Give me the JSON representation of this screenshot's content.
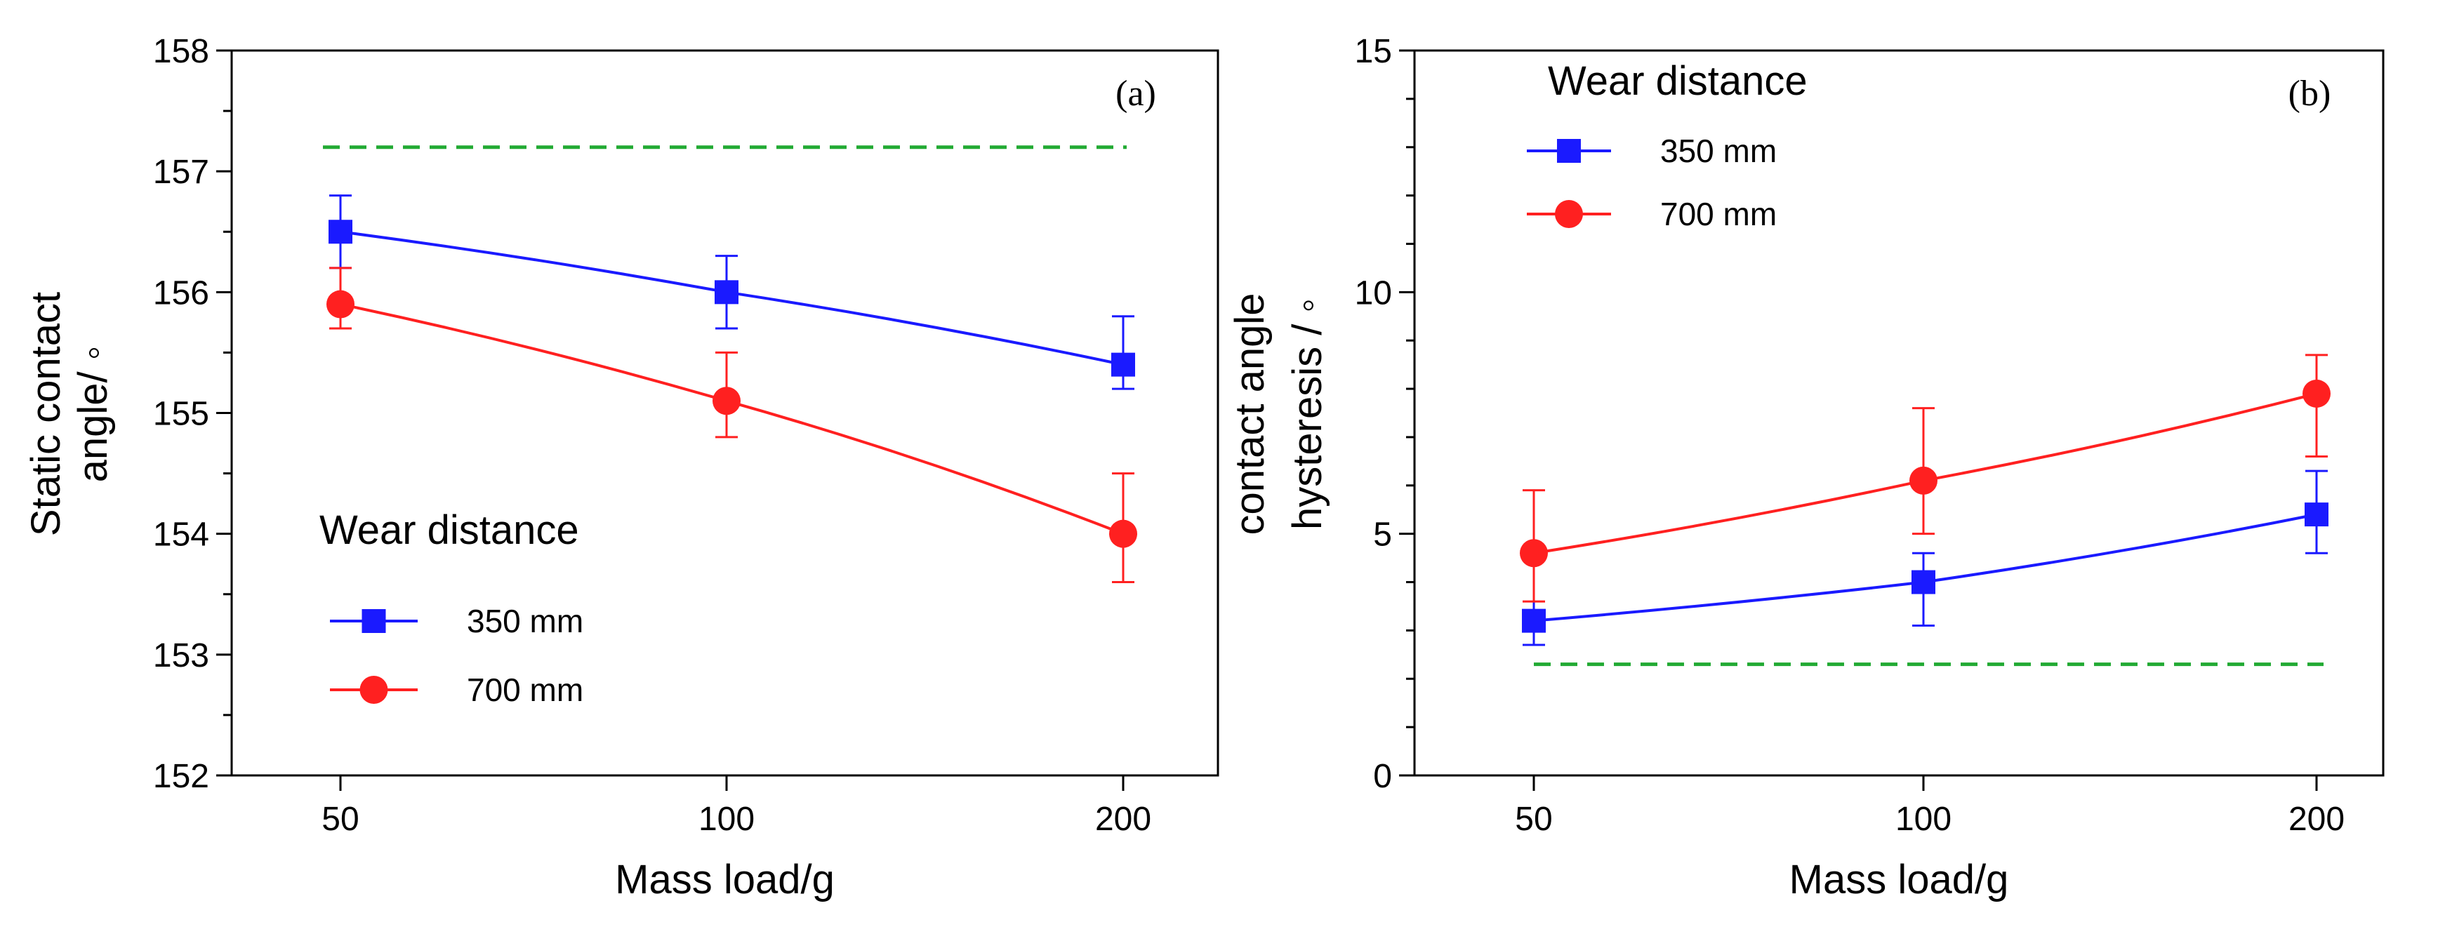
{
  "chart_data": [
    {
      "type": "line",
      "panel_label": "(a)",
      "xlabel": "Mass load/g",
      "ylabel_lines": [
        "Static contact",
        "angle/ ◦"
      ],
      "categories": [
        "50",
        "100",
        "200"
      ],
      "ylim": [
        152,
        158
      ],
      "yticks": [
        "152",
        "153",
        "154",
        "155",
        "156",
        "157",
        "158"
      ],
      "reference_line": {
        "value": 157.2,
        "color": "#22aa33",
        "style": "dashed"
      },
      "legend": {
        "title": "Wear distance",
        "placement": "lower-left"
      },
      "series": [
        {
          "name": "350 mm",
          "marker": "square",
          "color": "#1a1aff",
          "values": [
            156.5,
            156.0,
            155.4
          ],
          "err_high": [
            156.8,
            156.3,
            155.8
          ],
          "err_low": [
            156.2,
            155.7,
            155.2
          ]
        },
        {
          "name": "700 mm",
          "marker": "circle",
          "color": "#ff2020",
          "values": [
            155.9,
            155.1,
            154.0
          ],
          "err_high": [
            156.2,
            155.5,
            154.5
          ],
          "err_low": [
            155.7,
            154.8,
            153.6
          ]
        }
      ]
    },
    {
      "type": "line",
      "panel_label": "(b)",
      "xlabel": "Mass load/g",
      "ylabel_lines": [
        "contact angle",
        "hysteresis / ◦"
      ],
      "categories": [
        "50",
        "100",
        "200"
      ],
      "ylim": [
        0,
        15
      ],
      "yticks": [
        "0",
        "5",
        "10",
        "15"
      ],
      "reference_line": {
        "value": 2.3,
        "color": "#22aa33",
        "style": "dashed"
      },
      "legend": {
        "title": "Wear distance",
        "placement": "top-left"
      },
      "series": [
        {
          "name": "350 mm",
          "marker": "square",
          "color": "#1a1aff",
          "values": [
            3.2,
            4.0,
            5.4
          ],
          "err_high": [
            4.6,
            4.6,
            6.3
          ],
          "err_low": [
            2.7,
            3.1,
            4.6
          ]
        },
        {
          "name": "700 mm",
          "marker": "circle",
          "color": "#ff2020",
          "values": [
            4.6,
            6.1,
            7.9
          ],
          "err_high": [
            5.9,
            7.6,
            8.7
          ],
          "err_low": [
            3.6,
            5.0,
            6.6
          ]
        }
      ]
    }
  ]
}
